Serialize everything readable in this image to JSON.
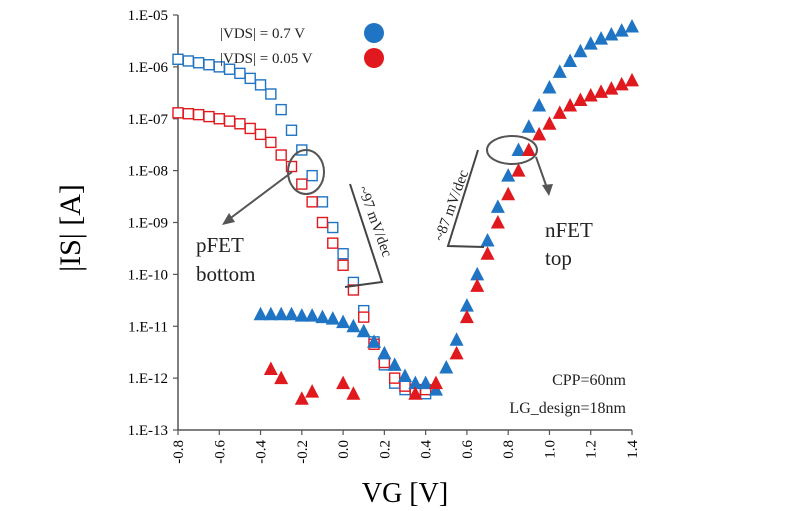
{
  "chart_data": {
    "type": "scatter",
    "xlabel": "VG [V]",
    "ylabel": "|IS| [A]",
    "xlim": [
      -0.8,
      1.4
    ],
    "ylim_log10": [
      -13,
      -5
    ],
    "log_y": true,
    "grid": false,
    "legend_position": "top-center",
    "x_ticks": [
      "-0.8",
      "-0.6",
      "-0.4",
      "-0.2",
      "0.0",
      "0.2",
      "0.4",
      "0.6",
      "0.8",
      "1.0",
      "1.2",
      "1.4"
    ],
    "y_ticks": [
      "1.E-05",
      "1.E-06",
      "1.E-07",
      "1.E-08",
      "1.E-09",
      "1.E-10",
      "1.E-11",
      "1.E-12",
      "1.E-13"
    ],
    "legend": [
      {
        "label": "|VDS| = 0.7 V",
        "color": "#1f74c4"
      },
      {
        "label": "|VDS| = 0.05 V",
        "color": "#e0191f"
      }
    ],
    "annotations": {
      "pfet_line1": "pFET",
      "pfet_line2": "bottom",
      "nfet_line1": "nFET",
      "nfet_line2": "top",
      "ss_pfet": "~97 mV/dec",
      "ss_nfet": "~87 mV/dec",
      "cpp": "CPP=60nm",
      "lg": "LG_design=18nm"
    },
    "series": [
      {
        "name": "|VDS| = 0.7 V",
        "device": "pFET",
        "marker": "open-square",
        "color": "#1f74c4",
        "x": [
          -0.8,
          -0.75,
          -0.7,
          -0.65,
          -0.6,
          -0.55,
          -0.5,
          -0.45,
          -0.4,
          -0.35,
          -0.3,
          -0.25,
          -0.2,
          -0.15,
          -0.1,
          -0.05,
          0.0,
          0.05,
          0.1,
          0.15,
          0.2,
          0.25,
          0.3,
          0.35,
          0.4
        ],
        "y": [
          1.4e-06,
          1.3e-06,
          1.2e-06,
          1.1e-06,
          1e-06,
          9e-07,
          7.5e-07,
          6e-07,
          4.5e-07,
          3e-07,
          1.5e-07,
          6e-08,
          2.5e-08,
          8e-09,
          2.5e-09,
          8e-10,
          2.5e-10,
          7e-11,
          2e-11,
          5e-12,
          1.8e-12,
          8e-13,
          6e-13,
          5e-13,
          5e-13
        ]
      },
      {
        "name": "|VDS| = 0.05 V",
        "device": "pFET",
        "marker": "open-square",
        "color": "#e0191f",
        "x": [
          -0.8,
          -0.75,
          -0.7,
          -0.65,
          -0.6,
          -0.55,
          -0.5,
          -0.45,
          -0.4,
          -0.35,
          -0.3,
          -0.25,
          -0.2,
          -0.15,
          -0.1,
          -0.05,
          0.0,
          0.05,
          0.1,
          0.15,
          0.2,
          0.25,
          0.3,
          0.35,
          0.4
        ],
        "y": [
          1.3e-07,
          1.25e-07,
          1.2e-07,
          1.1e-07,
          1e-07,
          9e-08,
          8e-08,
          6.5e-08,
          5e-08,
          3.5e-08,
          2e-08,
          1.2e-08,
          5.5e-09,
          2.5e-09,
          1e-09,
          4e-10,
          1.5e-10,
          5e-11,
          1.5e-11,
          4.5e-12,
          2e-12,
          1e-12,
          7e-13,
          6e-13,
          6e-13
        ]
      },
      {
        "name": "|VDS| = 0.7 V",
        "device": "nFET",
        "marker": "filled-triangle",
        "color": "#1f74c4",
        "x": [
          -0.4,
          -0.35,
          -0.3,
          -0.25,
          -0.2,
          -0.15,
          -0.1,
          -0.05,
          0.0,
          0.05,
          0.1,
          0.15,
          0.2,
          0.25,
          0.3,
          0.35,
          0.4,
          0.45,
          0.5,
          0.55,
          0.6,
          0.65,
          0.7,
          0.75,
          0.8,
          0.85,
          0.9,
          0.95,
          1.0,
          1.05,
          1.1,
          1.15,
          1.2,
          1.25,
          1.3,
          1.35,
          1.4
        ],
        "y": [
          1.7e-11,
          1.7e-11,
          1.7e-11,
          1.7e-11,
          1.6e-11,
          1.6e-11,
          1.5e-11,
          1.4e-11,
          1.2e-11,
          1e-11,
          8e-12,
          5e-12,
          3e-12,
          1.8e-12,
          1.1e-12,
          8e-13,
          8e-13,
          6e-13,
          1.6e-12,
          5.5e-12,
          2.5e-11,
          1e-10,
          4.5e-10,
          2e-09,
          8e-09,
          2.5e-08,
          7e-08,
          1.8e-07,
          4e-07,
          8e-07,
          1.3e-06,
          2e-06,
          2.8e-06,
          3.5e-06,
          4.2e-06,
          5e-06,
          6e-06
        ]
      },
      {
        "name": "|VDS| = 0.05 V",
        "device": "nFET",
        "marker": "filled-triangle",
        "color": "#e0191f",
        "x": [
          -0.35,
          -0.3,
          -0.2,
          -0.15,
          0.0,
          0.05,
          0.35,
          0.45,
          0.55,
          0.6,
          0.65,
          0.7,
          0.75,
          0.8,
          0.85,
          0.9,
          0.95,
          1.0,
          1.05,
          1.1,
          1.15,
          1.2,
          1.25,
          1.3,
          1.35,
          1.4
        ],
        "y": [
          1.5e-12,
          1e-12,
          4e-13,
          5.5e-13,
          8e-13,
          5e-13,
          5e-13,
          8e-13,
          3e-12,
          1.5e-11,
          6e-11,
          2.5e-10,
          1e-09,
          3.5e-09,
          1e-08,
          2.5e-08,
          5e-08,
          8e-08,
          1.3e-07,
          1.8e-07,
          2.3e-07,
          2.8e-07,
          3.3e-07,
          3.8e-07,
          4.6e-07,
          5.5e-07
        ]
      }
    ]
  }
}
